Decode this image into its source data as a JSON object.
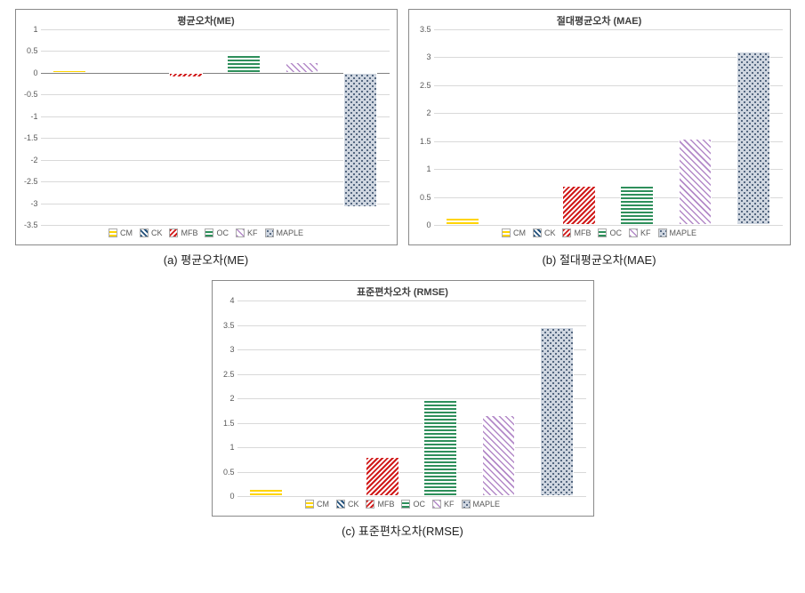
{
  "legend": {
    "items": [
      {
        "key": "cm",
        "label": "CM",
        "pattern": "pat-cm"
      },
      {
        "key": "ck",
        "label": "CK",
        "pattern": "pat-ck"
      },
      {
        "key": "mfb",
        "label": "MFB",
        "pattern": "pat-mfb"
      },
      {
        "key": "oc",
        "label": "OC",
        "pattern": "pat-oc"
      },
      {
        "key": "kf",
        "label": "KF",
        "pattern": "pat-kf"
      },
      {
        "key": "maple",
        "label": "MAPLE",
        "pattern": "pat-maple"
      }
    ]
  },
  "charts": {
    "me": {
      "type": "bar",
      "title": "평균오차(ME)",
      "caption": "(a) 평균오차(ME)",
      "ylim": [
        -3.5,
        1
      ],
      "ytick_step": 0.5,
      "values": [
        {
          "series": "cm",
          "value": 0.05
        },
        {
          "series": "ck",
          "value": 0.0
        },
        {
          "series": "mfb",
          "value": -0.1
        },
        {
          "series": "oc",
          "value": 0.42
        },
        {
          "series": "kf",
          "value": 0.25
        },
        {
          "series": "maple",
          "value": -3.1
        }
      ],
      "bar_width": 0.58,
      "axis_color": "#808080",
      "grid_color": "#d9d9d9",
      "background_color": "#ffffff",
      "title_fontsize": 11,
      "tick_fontsize": 9
    },
    "mae": {
      "type": "bar",
      "title": "절대평균오차 (MAE)",
      "caption": "(b) 절대평균오차(MAE)",
      "ylim": [
        0,
        3.5
      ],
      "ytick_step": 0.5,
      "values": [
        {
          "series": "cm",
          "value": 0.15
        },
        {
          "series": "ck",
          "value": 0.0
        },
        {
          "series": "mfb",
          "value": 0.7
        },
        {
          "series": "oc",
          "value": 0.7
        },
        {
          "series": "kf",
          "value": 1.55
        },
        {
          "series": "maple",
          "value": 3.1
        }
      ],
      "bar_width": 0.58,
      "axis_color": "#808080",
      "grid_color": "#d9d9d9",
      "background_color": "#ffffff",
      "title_fontsize": 11,
      "tick_fontsize": 9
    },
    "rmse": {
      "type": "bar",
      "title": "표준편차오차 (RMSE)",
      "caption": "(c) 표준편차오차(RMSE)",
      "ylim": [
        0,
        4
      ],
      "ytick_step": 0.5,
      "values": [
        {
          "series": "cm",
          "value": 0.18
        },
        {
          "series": "ck",
          "value": 0.0
        },
        {
          "series": "mfb",
          "value": 0.8
        },
        {
          "series": "oc",
          "value": 1.98
        },
        {
          "series": "kf",
          "value": 1.65
        },
        {
          "series": "maple",
          "value": 3.45
        }
      ],
      "bar_width": 0.58,
      "axis_color": "#808080",
      "grid_color": "#d9d9d9",
      "background_color": "#ffffff",
      "title_fontsize": 11,
      "tick_fontsize": 9
    }
  }
}
